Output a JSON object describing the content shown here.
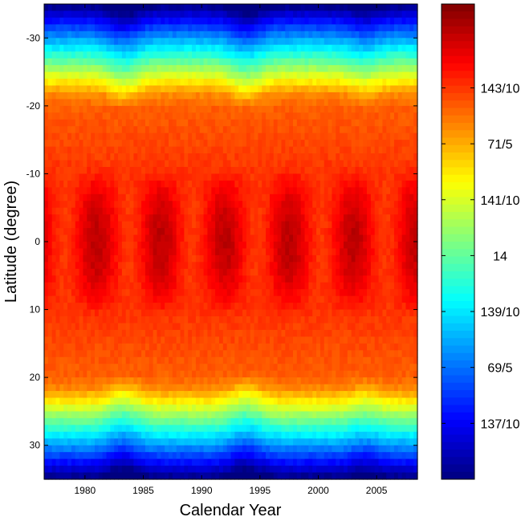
{
  "chart_data": {
    "type": "heatmap",
    "title": "",
    "xlabel": "Calendar Year",
    "ylabel": "Latitude (degree)",
    "xlim": [
      1976.5,
      2008.5
    ],
    "ylim": [
      -35,
      35
    ],
    "y_axis_inverted": true,
    "x_ticks": [
      1980,
      1985,
      1990,
      1995,
      2000,
      2005
    ],
    "x_tick_labels": [
      "1980",
      "1985",
      "1990",
      "1995",
      "2000",
      "2005"
    ],
    "y_ticks": [
      -30,
      -20,
      -10,
      0,
      10,
      20,
      30
    ],
    "y_tick_labels": [
      "-30",
      "-20",
      "-10",
      "0",
      "10",
      "20",
      "30"
    ],
    "colormap": "jet",
    "colorbar": {
      "clim": [
        13.6,
        14.45
      ],
      "ticks": [
        13.7,
        13.8,
        13.9,
        14.0,
        14.1,
        14.2,
        14.3
      ],
      "tick_labels": [
        "137/10",
        "69/5",
        "139/10",
        "14",
        "141/10",
        "71/5",
        "143/10"
      ],
      "placement": "right"
    },
    "grid": false,
    "description_values": {
      "equatorial_band_latitudes": [
        -10,
        10
      ],
      "equatorial_value_approx": 14.4,
      "mid_latitude_value_approx": 14.25,
      "edge_value_approx": 13.75
    }
  },
  "colors": {
    "jet_low": "#0000ff",
    "jet_high": "#800000",
    "axes": "#000000",
    "background": "#ffffff"
  }
}
